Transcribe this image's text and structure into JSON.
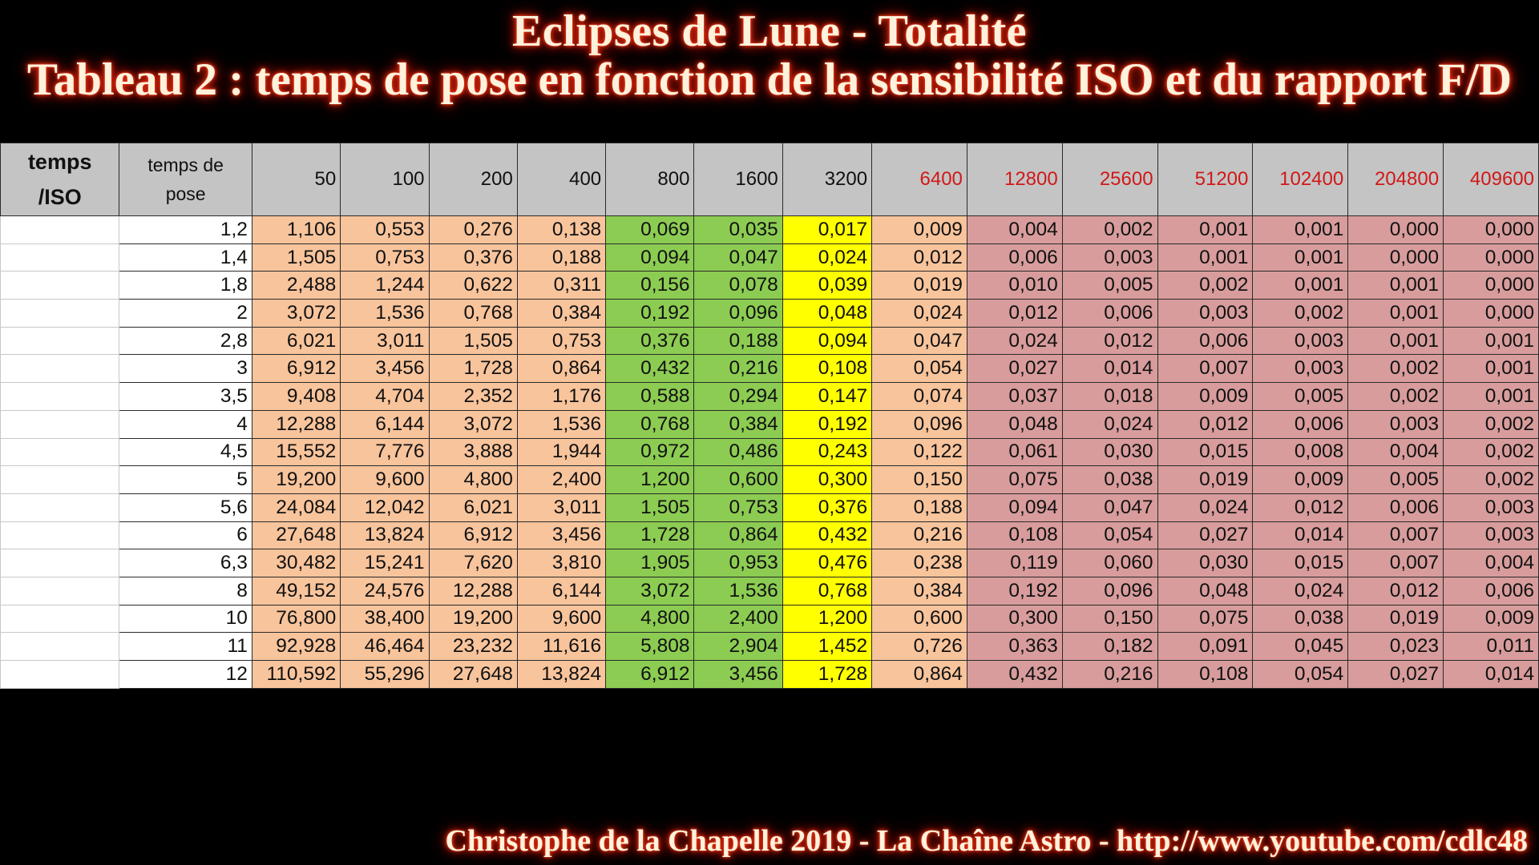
{
  "title_line1": "Eclipses de Lune - Totalité",
  "title_line2": "Tableau 2 : temps de pose en fonction de la sensibilité ISO et du rapport F/D",
  "footer": "Christophe de la Chapelle 2019  - La Chaîne Astro - http://www.youtube.com/cdlc48",
  "colors": {
    "iso_50_400": "#f8c49c",
    "iso_800_1600": "#8ccc52",
    "iso_3200": "#ffff00",
    "iso_6400": "#f8c49c",
    "iso_12800_plus": "#d89c9c",
    "high_iso_header_text": "#d01818"
  },
  "table": {
    "header_col0": "temps\n/ISO",
    "header_col1": "temps de\npose",
    "iso": [
      "50",
      "100",
      "200",
      "400",
      "800",
      "1600",
      "3200",
      "6400",
      "12800",
      "25600",
      "51200",
      "102400",
      "204800",
      "409600"
    ],
    "rows": [
      {
        "fd": "1,2",
        "values": [
          "1,106",
          "0,553",
          "0,276",
          "0,138",
          "0,069",
          "0,035",
          "0,017",
          "0,009",
          "0,004",
          "0,002",
          "0,001",
          "0,001",
          "0,000",
          "0,000"
        ]
      },
      {
        "fd": "1,4",
        "values": [
          "1,505",
          "0,753",
          "0,376",
          "0,188",
          "0,094",
          "0,047",
          "0,024",
          "0,012",
          "0,006",
          "0,003",
          "0,001",
          "0,001",
          "0,000",
          "0,000"
        ]
      },
      {
        "fd": "1,8",
        "values": [
          "2,488",
          "1,244",
          "0,622",
          "0,311",
          "0,156",
          "0,078",
          "0,039",
          "0,019",
          "0,010",
          "0,005",
          "0,002",
          "0,001",
          "0,001",
          "0,000"
        ]
      },
      {
        "fd": "2",
        "values": [
          "3,072",
          "1,536",
          "0,768",
          "0,384",
          "0,192",
          "0,096",
          "0,048",
          "0,024",
          "0,012",
          "0,006",
          "0,003",
          "0,002",
          "0,001",
          "0,000"
        ]
      },
      {
        "fd": "2,8",
        "values": [
          "6,021",
          "3,011",
          "1,505",
          "0,753",
          "0,376",
          "0,188",
          "0,094",
          "0,047",
          "0,024",
          "0,012",
          "0,006",
          "0,003",
          "0,001",
          "0,001"
        ]
      },
      {
        "fd": "3",
        "values": [
          "6,912",
          "3,456",
          "1,728",
          "0,864",
          "0,432",
          "0,216",
          "0,108",
          "0,054",
          "0,027",
          "0,014",
          "0,007",
          "0,003",
          "0,002",
          "0,001"
        ]
      },
      {
        "fd": "3,5",
        "values": [
          "9,408",
          "4,704",
          "2,352",
          "1,176",
          "0,588",
          "0,294",
          "0,147",
          "0,074",
          "0,037",
          "0,018",
          "0,009",
          "0,005",
          "0,002",
          "0,001"
        ]
      },
      {
        "fd": "4",
        "values": [
          "12,288",
          "6,144",
          "3,072",
          "1,536",
          "0,768",
          "0,384",
          "0,192",
          "0,096",
          "0,048",
          "0,024",
          "0,012",
          "0,006",
          "0,003",
          "0,002"
        ]
      },
      {
        "fd": "4,5",
        "values": [
          "15,552",
          "7,776",
          "3,888",
          "1,944",
          "0,972",
          "0,486",
          "0,243",
          "0,122",
          "0,061",
          "0,030",
          "0,015",
          "0,008",
          "0,004",
          "0,002"
        ]
      },
      {
        "fd": "5",
        "values": [
          "19,200",
          "9,600",
          "4,800",
          "2,400",
          "1,200",
          "0,600",
          "0,300",
          "0,150",
          "0,075",
          "0,038",
          "0,019",
          "0,009",
          "0,005",
          "0,002"
        ]
      },
      {
        "fd": "5,6",
        "values": [
          "24,084",
          "12,042",
          "6,021",
          "3,011",
          "1,505",
          "0,753",
          "0,376",
          "0,188",
          "0,094",
          "0,047",
          "0,024",
          "0,012",
          "0,006",
          "0,003"
        ]
      },
      {
        "fd": "6",
        "values": [
          "27,648",
          "13,824",
          "6,912",
          "3,456",
          "1,728",
          "0,864",
          "0,432",
          "0,216",
          "0,108",
          "0,054",
          "0,027",
          "0,014",
          "0,007",
          "0,003"
        ]
      },
      {
        "fd": "6,3",
        "values": [
          "30,482",
          "15,241",
          "7,620",
          "3,810",
          "1,905",
          "0,953",
          "0,476",
          "0,238",
          "0,119",
          "0,060",
          "0,030",
          "0,015",
          "0,007",
          "0,004"
        ]
      },
      {
        "fd": "8",
        "values": [
          "49,152",
          "24,576",
          "12,288",
          "6,144",
          "3,072",
          "1,536",
          "0,768",
          "0,384",
          "0,192",
          "0,096",
          "0,048",
          "0,024",
          "0,012",
          "0,006"
        ]
      },
      {
        "fd": "10",
        "values": [
          "76,800",
          "38,400",
          "19,200",
          "9,600",
          "4,800",
          "2,400",
          "1,200",
          "0,600",
          "0,300",
          "0,150",
          "0,075",
          "0,038",
          "0,019",
          "0,009"
        ]
      },
      {
        "fd": "11",
        "values": [
          "92,928",
          "46,464",
          "23,232",
          "11,616",
          "5,808",
          "2,904",
          "1,452",
          "0,726",
          "0,363",
          "0,182",
          "0,091",
          "0,045",
          "0,023",
          "0,011"
        ]
      },
      {
        "fd": "12",
        "values": [
          "110,592",
          "55,296",
          "27,648",
          "13,824",
          "6,912",
          "3,456",
          "1,728",
          "0,864",
          "0,432",
          "0,216",
          "0,108",
          "0,054",
          "0,027",
          "0,014"
        ]
      }
    ]
  }
}
